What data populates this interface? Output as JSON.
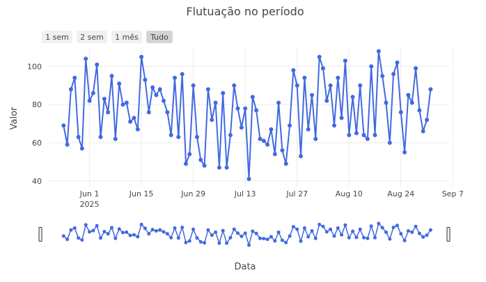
{
  "chart_data": {
    "type": "line",
    "title": "Flutuação no período",
    "xlabel": "Data",
    "ylabel": "Valor",
    "x_start": "2025-05-25",
    "x_range": [
      "2025-05-21",
      "2025-09-06"
    ],
    "ylim": [
      37,
      110
    ],
    "y_ticks": [
      40,
      60,
      80,
      100
    ],
    "x_ticks": [
      {
        "date": "2025-06-01",
        "label": "Jun 1",
        "sublabel": "2025"
      },
      {
        "date": "2025-06-15",
        "label": "Jun 15",
        "sublabel": ""
      },
      {
        "date": "2025-06-29",
        "label": "Jun 29",
        "sublabel": ""
      },
      {
        "date": "2025-07-13",
        "label": "Jul 13",
        "sublabel": ""
      },
      {
        "date": "2025-07-27",
        "label": "Jul 27",
        "sublabel": ""
      },
      {
        "date": "2025-08-10",
        "label": "Aug 10",
        "sublabel": ""
      },
      {
        "date": "2025-08-24",
        "label": "Aug 24",
        "sublabel": ""
      },
      {
        "date": "2025-09-07",
        "label": "Sep 7",
        "sublabel": ""
      }
    ],
    "values": [
      69,
      59,
      88,
      94,
      63,
      57,
      104,
      82,
      86,
      101,
      63,
      83,
      76,
      95,
      62,
      91,
      80,
      81,
      71,
      73,
      67,
      105,
      93,
      76,
      89,
      85,
      88,
      82,
      76,
      64,
      94,
      63,
      96,
      49,
      54,
      90,
      63,
      51,
      48,
      88,
      72,
      81,
      47,
      86,
      47,
      64,
      90,
      78,
      68,
      78,
      41,
      84,
      77,
      62,
      61,
      59,
      67,
      54,
      81,
      56,
      49,
      69,
      98,
      90,
      53,
      94,
      67,
      85,
      62,
      105,
      99,
      82,
      90,
      69,
      94,
      73,
      103,
      64,
      84,
      65,
      90,
      64,
      62,
      100,
      64,
      108,
      95,
      81,
      60,
      96,
      102,
      76,
      55,
      85,
      81,
      99,
      77,
      66,
      72,
      88
    ],
    "grid": true,
    "legend": "none",
    "line_color": "#4169e1",
    "range_buttons": [
      {
        "label": "1 sem",
        "active": false
      },
      {
        "label": "2 sem",
        "active": false
      },
      {
        "label": "1 mês",
        "active": false
      },
      {
        "label": "Tudo",
        "active": true
      }
    ],
    "rangeslider": true
  }
}
